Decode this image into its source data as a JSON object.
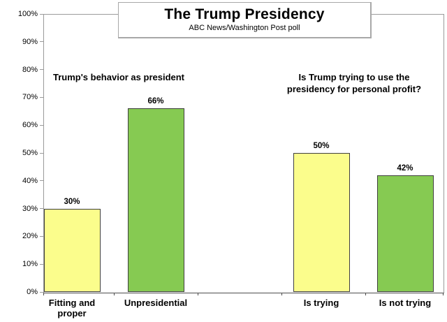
{
  "chart_data": {
    "type": "bar",
    "title": "The Trump Presidency",
    "subtitle": "ABC News/Washington Post poll",
    "grid": false,
    "legend": null,
    "y_axis": {
      "min": 0,
      "max": 100,
      "step": 10,
      "tick_labels": [
        "0%",
        "10%",
        "20%",
        "30%",
        "40%",
        "50%",
        "60%",
        "70%",
        "80%",
        "90%",
        "100%"
      ]
    },
    "groups": [
      {
        "heading": "Trump's behavior as president",
        "heading_lines": [
          "Trump's behavior as president"
        ],
        "bars": [
          {
            "category": "Fitting and proper",
            "category_lines": [
              "Fitting and",
              "proper"
            ],
            "value": 30,
            "value_label": "30%",
            "color": "#fbfd8c"
          },
          {
            "category": "Unpresidential",
            "category_lines": [
              "Unpresidential"
            ],
            "value": 66,
            "value_label": "66%",
            "color": "#86ca52"
          }
        ]
      },
      {
        "heading": "Is Trump trying to use the presidency for personal profit?",
        "heading_lines": [
          "Is Trump trying to use the",
          "presidency for personal profit?"
        ],
        "bars": [
          {
            "category": "Is trying",
            "category_lines": [
              "Is trying"
            ],
            "value": 50,
            "value_label": "50%",
            "color": "#fbfd8c"
          },
          {
            "category": "Is not trying",
            "category_lines": [
              "Is not trying"
            ],
            "value": 42,
            "value_label": "42%",
            "color": "#86ca52"
          }
        ]
      }
    ],
    "colors": {
      "bar_yellow": "#fbfd8c",
      "bar_green": "#86ca52",
      "bar_border": "#3f3f3f",
      "axis_line": "#9a9a9a",
      "x_axis_line": "#4d4d4d",
      "title_box_border": "#a8a8a8",
      "text": "#000000",
      "background": "#ffffff"
    }
  }
}
